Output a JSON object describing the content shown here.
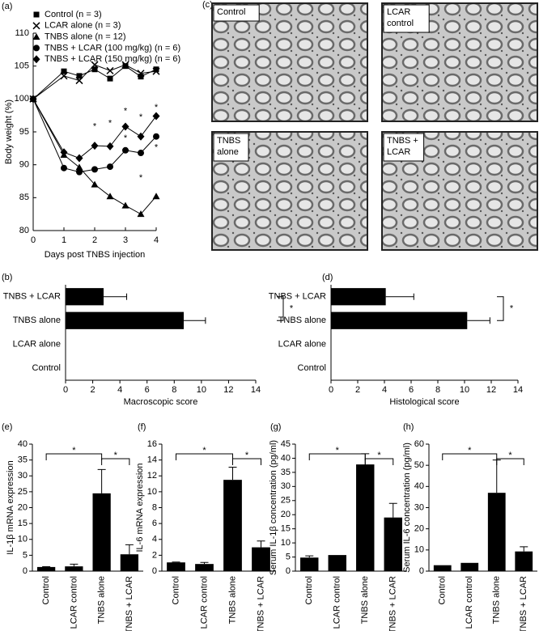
{
  "chart_data": [
    {
      "type": "line",
      "panel_label": "(a)",
      "x_label": "Days post TNBS injection",
      "y_label": "Body weight (%)",
      "x": [
        0,
        1,
        1.5,
        2,
        2.5,
        3,
        3.5,
        4
      ],
      "series": [
        {
          "name": "Control (n = 3)",
          "marker": "square",
          "color": "#000000",
          "values": [
            100,
            104.2,
            103.5,
            104.5,
            103.1,
            105,
            103.4,
            104.5
          ]
        },
        {
          "name": "LCAR alone (n = 3)",
          "marker": "x",
          "color": "#000000",
          "values": [
            100,
            103.5,
            102.8,
            105.2,
            104.3,
            105.2,
            103.9,
            104.2
          ]
        },
        {
          "name": "TNBS alone (n = 12)",
          "marker": "triangle",
          "color": "#000000",
          "values": [
            100,
            91.5,
            89.6,
            87,
            85.2,
            83.8,
            82.5,
            85.2
          ]
        },
        {
          "name": "TNBS + LCAR (100 mg/kg) (n = 6)",
          "marker": "circle",
          "color": "#000000",
          "values": [
            100,
            89.5,
            88.9,
            89.3,
            89.7,
            92.2,
            91.8,
            94.3
          ]
        },
        {
          "name": "TNBS + LCAR (150 mg/kg) (n = 6)",
          "marker": "diamond",
          "color": "#000000",
          "values": [
            100,
            91.9,
            91,
            92.9,
            92.8,
            95.8,
            94.3,
            97.4
          ]
        }
      ],
      "annotations": [
        {
          "text": "*",
          "x": 2,
          "y": 95.8
        },
        {
          "text": "*",
          "x": 2.5,
          "y": 96.3
        },
        {
          "text": "*",
          "x": 3,
          "y": 98.1
        },
        {
          "text": "*",
          "x": 3.5,
          "y": 97.2
        },
        {
          "text": "*",
          "x": 4,
          "y": 98.7
        },
        {
          "text": "*",
          "x": 3,
          "y": 94
        },
        {
          "text": "*",
          "x": 3.5,
          "y": 88
        },
        {
          "text": "*",
          "x": 4,
          "y": 92.6
        }
      ],
      "xlim": [
        0,
        4
      ],
      "xticks": [
        0,
        1,
        2,
        3,
        4
      ],
      "ylim": [
        80,
        110
      ],
      "yticks": [
        80,
        85,
        90,
        95,
        100,
        105,
        110
      ]
    },
    {
      "type": "images",
      "panel_label": "(c)",
      "panels": [
        [
          "Control"
        ],
        [
          "LCAR",
          "control"
        ],
        [
          "TNBS",
          "alone"
        ],
        [
          "TNBS +",
          "LCAR"
        ]
      ]
    },
    {
      "type": "hbar",
      "panel_label": "(b)",
      "x_label": "Macroscopic score",
      "categories": [
        "Control",
        "LCAR alone",
        "TNBS alone",
        "TNBS + LCAR"
      ],
      "values": [
        0,
        0,
        8.7,
        2.8
      ],
      "errors": [
        null,
        null,
        1.6,
        1.7
      ],
      "color": "#000000",
      "significance": [
        {
          "pair": [
            2,
            3
          ],
          "text": "*"
        }
      ],
      "xlim": [
        0,
        14
      ],
      "xticks": [
        0,
        2,
        4,
        6,
        8,
        10,
        12,
        14
      ]
    },
    {
      "type": "hbar",
      "panel_label": "(d)",
      "x_label": "Histological score",
      "categories": [
        "Control",
        "LCAR alone",
        "TNBS alone",
        "TNBS + LCAR"
      ],
      "values": [
        0,
        0,
        10.2,
        4.1
      ],
      "errors": [
        null,
        null,
        1.7,
        2.1
      ],
      "color": "#000000",
      "significance": [
        {
          "pair": [
            2,
            3
          ],
          "text": "*"
        }
      ],
      "xlim": [
        0,
        14
      ],
      "xticks": [
        0,
        2,
        4,
        6,
        8,
        10,
        12,
        14
      ]
    },
    {
      "type": "bar",
      "panel_label": "(e)",
      "y_label": "IL-1β mRNA expression",
      "categories": [
        "Control",
        "LCAR control",
        "TNBS alone",
        "TNBS + LCAR"
      ],
      "values": [
        1.3,
        1.5,
        24.5,
        5.3
      ],
      "errors": [
        0.1,
        0.7,
        7.5,
        3
      ],
      "color": "#000000",
      "significance": [
        {
          "pair": [
            0,
            2
          ],
          "text": "*"
        },
        {
          "pair": [
            2,
            3
          ],
          "text": "*"
        }
      ],
      "ylim": [
        0,
        40
      ],
      "yticks": [
        0,
        5,
        10,
        15,
        20,
        25,
        30,
        35,
        40
      ]
    },
    {
      "type": "bar",
      "panel_label": "(f)",
      "y_label": "IL-6 mRNA expression",
      "categories": [
        "Control",
        "LCAR control",
        "TNBS alone",
        "TNBS + LCAR"
      ],
      "values": [
        1.1,
        0.9,
        11.5,
        3
      ],
      "errors": [
        0.05,
        0.2,
        1.6,
        0.8
      ],
      "color": "#000000",
      "significance": [
        {
          "pair": [
            0,
            2
          ],
          "text": "*"
        },
        {
          "pair": [
            2,
            3
          ],
          "text": "*"
        }
      ],
      "ylim": [
        0,
        16
      ],
      "yticks": [
        0,
        2,
        4,
        6,
        8,
        10,
        12,
        14,
        16
      ]
    },
    {
      "type": "bar",
      "panel_label": "(g)",
      "y_label": "Serum IL-1β concentration (pg/ml)",
      "categories": [
        "Control",
        "LCAR control",
        "TNBS alone",
        "TNBS + LCAR"
      ],
      "values": [
        4.8,
        5.7,
        37.8,
        19
      ],
      "errors": [
        0.6,
        null,
        3.8,
        5
      ],
      "color": "#000000",
      "significance": [
        {
          "pair": [
            0,
            2
          ],
          "text": "*"
        },
        {
          "pair": [
            2,
            3
          ],
          "text": "*"
        }
      ],
      "ylim": [
        0,
        45
      ],
      "yticks": [
        0,
        5,
        10,
        15,
        20,
        25,
        30,
        35,
        40,
        45
      ]
    },
    {
      "type": "bar",
      "panel_label": "(h)",
      "y_label": "Serum IL-6 concentration (pg/ml)",
      "categories": [
        "Control",
        "LCAR control",
        "TNBS alone",
        "TNBS + LCAR"
      ],
      "values": [
        2.8,
        3.9,
        37,
        9.3
      ],
      "errors": [
        null,
        null,
        15.5,
        2.2
      ],
      "color": "#000000",
      "significance": [
        {
          "pair": [
            0,
            2
          ],
          "text": "*"
        },
        {
          "pair": [
            2,
            3
          ],
          "text": "*"
        }
      ],
      "ylim": [
        0,
        60
      ],
      "yticks": [
        0,
        10,
        20,
        30,
        40,
        50,
        60
      ]
    }
  ]
}
